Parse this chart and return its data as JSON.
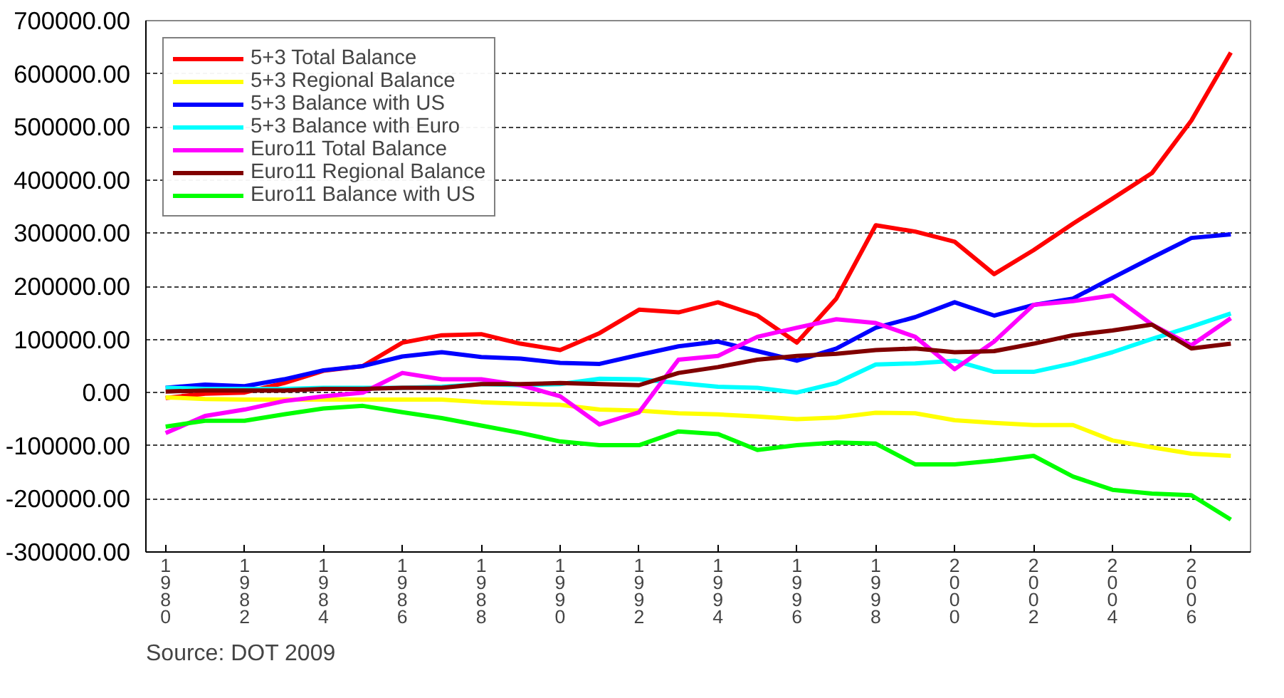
{
  "chart_data": {
    "type": "line",
    "categories": [
      "1980",
      null,
      "1982",
      null,
      "1984",
      null,
      "1986",
      null,
      "1988",
      null,
      "1990",
      null,
      "1992",
      null,
      "1994",
      null,
      "1996",
      null,
      "1998",
      null,
      "2000",
      null,
      "2002",
      null,
      "2004",
      null,
      "2006",
      null
    ],
    "series": [
      {
        "name": "5+3 Total Balance",
        "color": "#ff0000",
        "values": [
          -10000,
          -2000,
          0,
          18000,
          41000,
          50000,
          94000,
          108000,
          110000,
          92000,
          80000,
          112000,
          156000,
          151000,
          170000,
          145000,
          94000,
          177000,
          315000,
          303000,
          284000,
          223000,
          268000,
          318000,
          365000,
          413000,
          512000,
          640000
        ]
      },
      {
        "name": "5+3 Regional Balance",
        "color": "#ffff00",
        "values": [
          -9000,
          -12000,
          -13000,
          -13000,
          -13000,
          -13000,
          -13000,
          -13000,
          -18000,
          -21000,
          -23000,
          -32000,
          -34000,
          -39000,
          -41000,
          -45000,
          -50000,
          -47000,
          -38000,
          -39000,
          -52000,
          -57000,
          -61000,
          -61000,
          -90000,
          -103000,
          -115000,
          -119000
        ]
      },
      {
        "name": "5+3 Balance with US",
        "color": "#0000ff",
        "values": [
          9000,
          15000,
          12000,
          25000,
          42000,
          50000,
          68000,
          76000,
          67000,
          64000,
          56000,
          54000,
          71000,
          87000,
          96000,
          78000,
          60000,
          83000,
          122000,
          142000,
          170000,
          145000,
          165000,
          177000,
          216000,
          254000,
          291000,
          298000
        ]
      },
      {
        "name": "5+3 Balance with Euro",
        "color": "#00ffff",
        "values": [
          9000,
          7000,
          7000,
          7000,
          9000,
          9000,
          9000,
          11000,
          16000,
          14000,
          16000,
          26000,
          25000,
          18000,
          11000,
          9000,
          0,
          18000,
          53000,
          55000,
          60000,
          39000,
          39000,
          55000,
          76000,
          101000,
          124000,
          149000
        ]
      },
      {
        "name": "Euro11 Total Balance",
        "color": "#ff00ff",
        "values": [
          -76000,
          -44000,
          -32000,
          -16000,
          -7000,
          0,
          37000,
          25000,
          25000,
          14000,
          -7000,
          -60000,
          -37000,
          62000,
          69000,
          105000,
          122000,
          138000,
          131000,
          105000,
          44000,
          96000,
          165000,
          172000,
          183000,
          128000,
          89000,
          140000
        ]
      },
      {
        "name": "Euro11 Regional Balance",
        "color": "#800000",
        "values": [
          2000,
          4000,
          4000,
          4000,
          7000,
          7000,
          9000,
          9000,
          16000,
          16000,
          18000,
          16000,
          14000,
          37000,
          48000,
          62000,
          69000,
          73000,
          80000,
          83000,
          76000,
          78000,
          92000,
          108000,
          117000,
          128000,
          83000,
          92000
        ]
      },
      {
        "name": "Euro11 Balance with US",
        "color": "#00ff00",
        "values": [
          -64000,
          -53000,
          -53000,
          -41000,
          -30000,
          -25000,
          -37000,
          -48000,
          -62000,
          -76000,
          -92000,
          -99000,
          -99000,
          -73000,
          -78000,
          -108000,
          -99000,
          -94000,
          -96000,
          -135000,
          -135000,
          -128000,
          -119000,
          -158000,
          -183000,
          -190000,
          -193000,
          -239000
        ]
      }
    ],
    "ylim": [
      -300000,
      700000
    ],
    "yticks": [
      {
        "value": -300000,
        "label": "-300000.00"
      },
      {
        "value": -200000,
        "label": "-200000.00"
      },
      {
        "value": -100000,
        "label": "-100000.00"
      },
      {
        "value": 0,
        "label": "0.00"
      },
      {
        "value": 100000,
        "label": "100000.00"
      },
      {
        "value": 200000,
        "label": "200000.00"
      },
      {
        "value": 300000,
        "label": "300000.00"
      },
      {
        "value": 400000,
        "label": "400000.00"
      },
      {
        "value": 500000,
        "label": "500000.00"
      },
      {
        "value": 600000,
        "label": "600000.00"
      },
      {
        "value": 700000,
        "label": "700000.00"
      }
    ],
    "grid": "y",
    "legend": "top left",
    "line_style": "solid",
    "annotations": [
      "Source: DOT 2009"
    ]
  }
}
